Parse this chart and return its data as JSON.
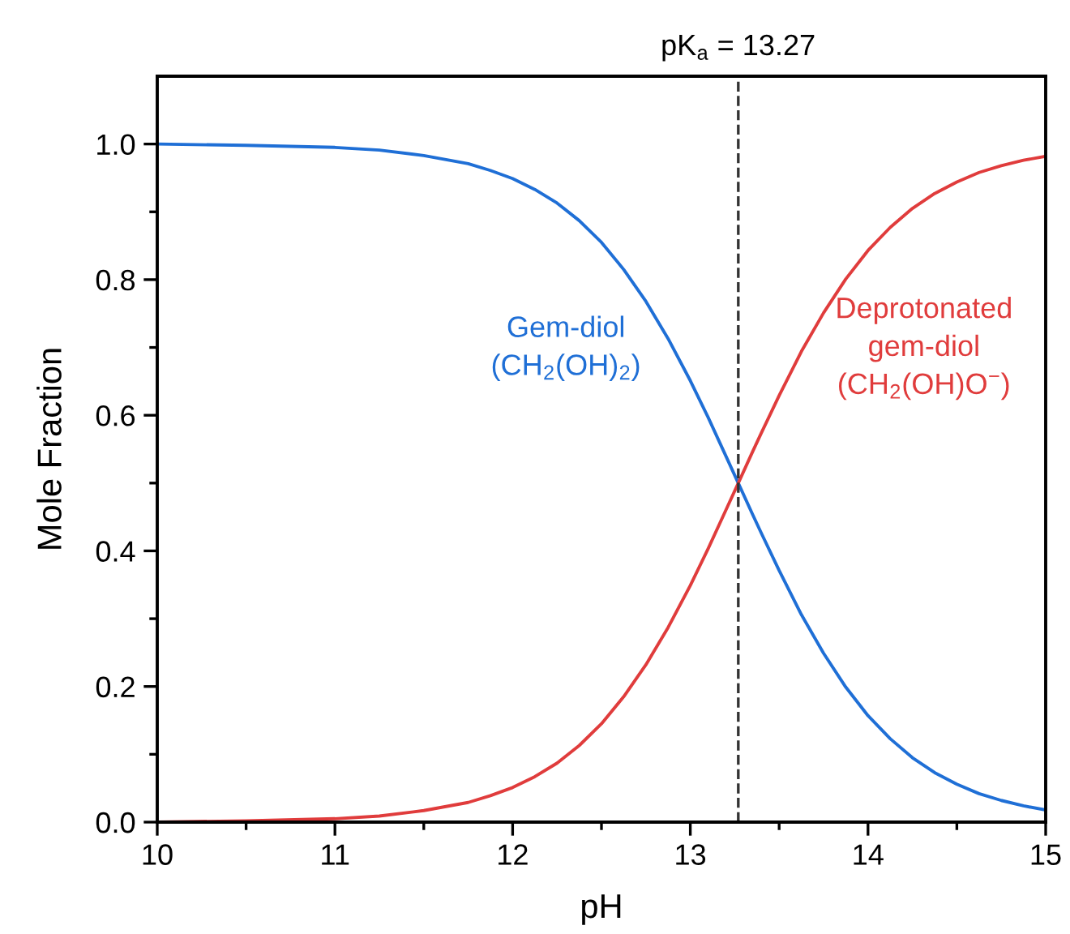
{
  "chart_data": {
    "type": "line",
    "xlabel": "pH",
    "ylabel": "Mole Fraction",
    "x": [
      10,
      10.5,
      11,
      11.25,
      11.5,
      11.75,
      11.875,
      12,
      12.125,
      12.25,
      12.375,
      12.5,
      12.625,
      12.75,
      12.875,
      13,
      13.1,
      13.2,
      13.27,
      13.35,
      13.4,
      13.5,
      13.625,
      13.75,
      13.875,
      14,
      14.125,
      14.25,
      14.375,
      14.5,
      14.625,
      14.75,
      14.875,
      15
    ],
    "series": [
      {
        "name": "Gem-diol\n(CH$_{2}$(OH)$_{2}$)",
        "color": "#1f6fd6",
        "values": [
          1.0,
          0.998,
          0.995,
          0.991,
          0.983,
          0.971,
          0.961,
          0.949,
          0.933,
          0.913,
          0.887,
          0.855,
          0.815,
          0.768,
          0.713,
          0.651,
          0.597,
          0.54,
          0.5,
          0.454,
          0.426,
          0.371,
          0.306,
          0.249,
          0.199,
          0.157,
          0.123,
          0.095,
          0.073,
          0.056,
          0.042,
          0.032,
          0.024,
          0.018
        ]
      },
      {
        "name": "Deprotonated\ngem-diol\n(CH$_{2}$(OH)O$^{−}$)",
        "color": "#e03c3c",
        "values": [
          0.0,
          0.002,
          0.005,
          0.009,
          0.017,
          0.029,
          0.039,
          0.051,
          0.067,
          0.087,
          0.113,
          0.145,
          0.185,
          0.232,
          0.287,
          0.349,
          0.403,
          0.46,
          0.5,
          0.546,
          0.574,
          0.629,
          0.694,
          0.751,
          0.801,
          0.843,
          0.877,
          0.905,
          0.927,
          0.944,
          0.958,
          0.968,
          0.976,
          0.982
        ]
      }
    ],
    "xlim": [
      10,
      15
    ],
    "ylim": [
      0,
      1.1
    ],
    "xticks": [
      10,
      {
        "value": 10.5,
        "label": null
      },
      11,
      {
        "value": 11.5,
        "label": null
      },
      12,
      {
        "value": 12.5,
        "label": null
      },
      13,
      {
        "value": 13.5,
        "label": null
      },
      14,
      {
        "value": 14.5,
        "label": null
      },
      15
    ],
    "yticks": [
      {
        "value": 0.0,
        "label": "0.0"
      },
      {
        "value": 0.1,
        "label": null
      },
      {
        "value": 0.2,
        "label": "0.2"
      },
      {
        "value": 0.3,
        "label": null
      },
      {
        "value": 0.4,
        "label": "0.4"
      },
      {
        "value": 0.5,
        "label": null
      },
      {
        "value": 0.6,
        "label": "0.6"
      },
      {
        "value": 0.7,
        "label": null
      },
      {
        "value": 0.8,
        "label": "0.8"
      },
      {
        "value": 0.9,
        "label": null
      },
      {
        "value": 1.0,
        "label": "1.0"
      }
    ],
    "ref_lines": [
      {
        "axis": "x",
        "value": 13.27,
        "label": "pK$_{a}$ = 13.27",
        "color": "#333333",
        "line_style": "dashed"
      }
    ],
    "grid": false,
    "legend": false,
    "marker": "none",
    "line_style": "solid"
  }
}
